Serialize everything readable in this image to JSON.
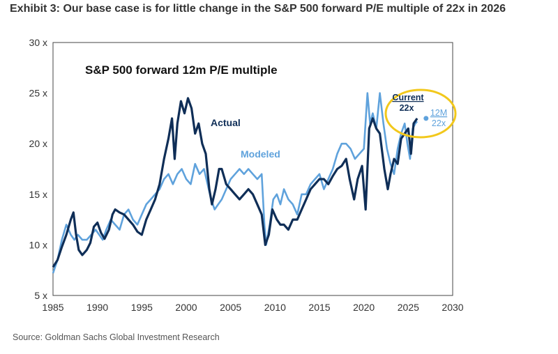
{
  "page": {
    "headline": "Exhibit 3: Our base case is for little change in the S&P 500 forward P/E multiple of 22x in 2026",
    "source": "Source: Goldman Sachs Global Investment Research"
  },
  "chart_data": {
    "type": "line",
    "title": "S&P 500 forward 12m P/E multiple",
    "xlabel": "",
    "ylabel": "",
    "xlim": [
      1985,
      2030
    ],
    "ylim": [
      5,
      30
    ],
    "x_ticks": [
      "1985",
      "1990",
      "1995",
      "2000",
      "2005",
      "2010",
      "2015",
      "2020",
      "2025",
      "2030"
    ],
    "y_ticks": [
      "5 x",
      "10 x",
      "15 x",
      "20 x",
      "25 x",
      "30 x"
    ],
    "grid": false,
    "series": [
      {
        "name": "Actual",
        "color": "#0f2e57",
        "points": [
          [
            1985.0,
            7.8
          ],
          [
            1985.5,
            8.5
          ],
          [
            1986.0,
            9.8
          ],
          [
            1986.5,
            11.0
          ],
          [
            1987.0,
            12.5
          ],
          [
            1987.3,
            13.2
          ],
          [
            1987.6,
            11.0
          ],
          [
            1987.9,
            9.5
          ],
          [
            1988.3,
            9.0
          ],
          [
            1988.8,
            9.5
          ],
          [
            1989.2,
            10.2
          ],
          [
            1989.6,
            11.8
          ],
          [
            1990.0,
            12.2
          ],
          [
            1990.4,
            11.2
          ],
          [
            1990.8,
            10.6
          ],
          [
            1991.3,
            11.5
          ],
          [
            1991.7,
            13.0
          ],
          [
            1992.0,
            13.5
          ],
          [
            1992.5,
            13.2
          ],
          [
            1993.0,
            13.0
          ],
          [
            1993.5,
            12.5
          ],
          [
            1994.0,
            12.0
          ],
          [
            1994.5,
            11.3
          ],
          [
            1995.0,
            11.0
          ],
          [
            1995.5,
            12.5
          ],
          [
            1996.0,
            13.5
          ],
          [
            1996.5,
            14.5
          ],
          [
            1997.0,
            16.0
          ],
          [
            1997.5,
            18.5
          ],
          [
            1998.0,
            20.5
          ],
          [
            1998.4,
            22.5
          ],
          [
            1998.7,
            18.5
          ],
          [
            1999.0,
            22.0
          ],
          [
            1999.4,
            24.2
          ],
          [
            1999.8,
            23.0
          ],
          [
            2000.2,
            24.5
          ],
          [
            2000.6,
            23.5
          ],
          [
            2001.0,
            21.0
          ],
          [
            2001.4,
            22.0
          ],
          [
            2001.8,
            20.0
          ],
          [
            2002.2,
            19.0
          ],
          [
            2002.6,
            15.5
          ],
          [
            2002.9,
            14.0
          ],
          [
            2003.3,
            15.5
          ],
          [
            2003.7,
            17.5
          ],
          [
            2004.0,
            17.5
          ],
          [
            2004.5,
            16.0
          ],
          [
            2005.0,
            15.5
          ],
          [
            2005.5,
            15.0
          ],
          [
            2006.0,
            14.5
          ],
          [
            2006.5,
            15.0
          ],
          [
            2007.0,
            15.5
          ],
          [
            2007.5,
            15.0
          ],
          [
            2008.0,
            14.0
          ],
          [
            2008.5,
            13.0
          ],
          [
            2008.9,
            10.0
          ],
          [
            2009.3,
            11.0
          ],
          [
            2009.7,
            13.5
          ],
          [
            2010.2,
            12.5
          ],
          [
            2010.6,
            12.0
          ],
          [
            2011.0,
            12.0
          ],
          [
            2011.5,
            11.5
          ],
          [
            2012.0,
            12.5
          ],
          [
            2012.5,
            12.5
          ],
          [
            2013.0,
            13.5
          ],
          [
            2013.5,
            14.5
          ],
          [
            2014.0,
            15.5
          ],
          [
            2014.5,
            16.0
          ],
          [
            2015.0,
            16.5
          ],
          [
            2015.5,
            16.5
          ],
          [
            2016.0,
            16.0
          ],
          [
            2016.5,
            16.8
          ],
          [
            2017.0,
            17.5
          ],
          [
            2017.5,
            17.8
          ],
          [
            2018.0,
            18.5
          ],
          [
            2018.4,
            16.5
          ],
          [
            2018.9,
            14.5
          ],
          [
            2019.3,
            16.5
          ],
          [
            2019.8,
            17.8
          ],
          [
            2020.2,
            13.5
          ],
          [
            2020.6,
            21.5
          ],
          [
            2021.0,
            22.5
          ],
          [
            2021.4,
            21.5
          ],
          [
            2021.8,
            21.0
          ],
          [
            2022.3,
            17.5
          ],
          [
            2022.7,
            15.5
          ],
          [
            2023.0,
            17.0
          ],
          [
            2023.4,
            18.5
          ],
          [
            2023.8,
            18.0
          ],
          [
            2024.2,
            20.5
          ],
          [
            2024.6,
            21.0
          ],
          [
            2025.0,
            21.5
          ],
          [
            2025.3,
            19.0
          ],
          [
            2025.6,
            22.0
          ],
          [
            2026.0,
            22.5
          ]
        ]
      },
      {
        "name": "Modeled",
        "color": "#5fa2dc",
        "points": [
          [
            1985.0,
            7.2
          ],
          [
            1985.5,
            8.5
          ],
          [
            1986.0,
            10.5
          ],
          [
            1986.5,
            12.0
          ],
          [
            1987.0,
            11.0
          ],
          [
            1987.4,
            10.5
          ],
          [
            1987.8,
            11.0
          ],
          [
            1988.3,
            10.5
          ],
          [
            1988.8,
            10.5
          ],
          [
            1989.3,
            11.0
          ],
          [
            1989.8,
            11.5
          ],
          [
            1990.2,
            11.0
          ],
          [
            1990.6,
            10.5
          ],
          [
            1991.0,
            11.5
          ],
          [
            1991.5,
            12.5
          ],
          [
            1992.0,
            12.0
          ],
          [
            1992.5,
            11.5
          ],
          [
            1993.0,
            13.0
          ],
          [
            1993.5,
            13.5
          ],
          [
            1994.0,
            12.5
          ],
          [
            1994.5,
            12.0
          ],
          [
            1995.0,
            13.0
          ],
          [
            1995.5,
            14.0
          ],
          [
            1996.0,
            14.5
          ],
          [
            1996.5,
            15.0
          ],
          [
            1997.0,
            15.5
          ],
          [
            1997.5,
            16.5
          ],
          [
            1998.0,
            17.0
          ],
          [
            1998.5,
            16.0
          ],
          [
            1999.0,
            17.0
          ],
          [
            1999.5,
            17.5
          ],
          [
            2000.0,
            16.5
          ],
          [
            2000.5,
            16.0
          ],
          [
            2001.0,
            18.0
          ],
          [
            2001.5,
            17.0
          ],
          [
            2002.0,
            17.5
          ],
          [
            2002.4,
            16.0
          ],
          [
            2002.8,
            14.5
          ],
          [
            2003.2,
            13.5
          ],
          [
            2003.6,
            14.0
          ],
          [
            2004.0,
            14.5
          ],
          [
            2004.5,
            15.5
          ],
          [
            2005.0,
            16.5
          ],
          [
            2005.5,
            17.0
          ],
          [
            2006.0,
            17.5
          ],
          [
            2006.5,
            17.0
          ],
          [
            2007.0,
            17.5
          ],
          [
            2007.5,
            17.0
          ],
          [
            2008.0,
            16.5
          ],
          [
            2008.5,
            17.0
          ],
          [
            2008.8,
            12.0
          ],
          [
            2009.0,
            10.0
          ],
          [
            2009.4,
            12.0
          ],
          [
            2009.8,
            14.5
          ],
          [
            2010.2,
            15.0
          ],
          [
            2010.6,
            14.0
          ],
          [
            2011.0,
            15.5
          ],
          [
            2011.5,
            14.5
          ],
          [
            2012.0,
            14.0
          ],
          [
            2012.5,
            13.0
          ],
          [
            2013.0,
            15.0
          ],
          [
            2013.5,
            15.0
          ],
          [
            2014.0,
            16.0
          ],
          [
            2014.5,
            16.5
          ],
          [
            2015.0,
            17.0
          ],
          [
            2015.5,
            15.5
          ],
          [
            2016.0,
            16.5
          ],
          [
            2016.5,
            17.5
          ],
          [
            2017.0,
            19.0
          ],
          [
            2017.5,
            20.0
          ],
          [
            2018.0,
            20.0
          ],
          [
            2018.5,
            19.5
          ],
          [
            2019.0,
            18.5
          ],
          [
            2019.5,
            19.0
          ],
          [
            2020.0,
            19.5
          ],
          [
            2020.4,
            25.0
          ],
          [
            2020.7,
            22.0
          ],
          [
            2021.0,
            23.0
          ],
          [
            2021.4,
            21.5
          ],
          [
            2021.8,
            25.0
          ],
          [
            2022.2,
            22.0
          ],
          [
            2022.6,
            19.5
          ],
          [
            2023.0,
            18.0
          ],
          [
            2023.4,
            17.0
          ],
          [
            2023.8,
            19.5
          ],
          [
            2024.2,
            21.0
          ],
          [
            2024.6,
            22.0
          ],
          [
            2024.9,
            20.0
          ],
          [
            2025.2,
            18.5
          ],
          [
            2025.5,
            21.5
          ],
          [
            2025.8,
            22.0
          ],
          [
            2026.0,
            22.2
          ]
        ]
      }
    ],
    "series_labels": {
      "actual": "Actual",
      "modeled": "Modeled"
    },
    "annotations": {
      "current_label": "Current",
      "current_value": "22x",
      "forecast_label": "12M",
      "forecast_value": "22x",
      "forecast_point": [
        2027.0,
        22.5
      ]
    }
  },
  "colors": {
    "actual": "#0f2e57",
    "modeled": "#5fa2dc",
    "highlight": "#f2c81c",
    "axis": "#444444"
  }
}
